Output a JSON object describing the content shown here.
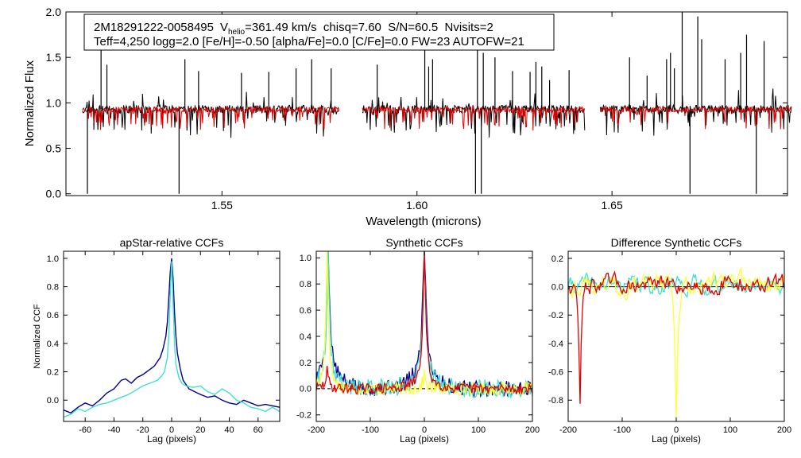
{
  "figure": {
    "star_name": "2M18291222-0058495"
  },
  "chart_data": [
    {
      "id": "spectrum",
      "type": "line",
      "title": "",
      "xlabel": "Wavelength (microns)",
      "ylabel": "Normalized Flux",
      "xlim": [
        1.51,
        1.695
      ],
      "ylim": [
        -0.02,
        2.0
      ],
      "xticks": [
        1.55,
        1.6,
        1.65
      ],
      "xtick_labels": [
        "1.55",
        "1.60",
        "1.65"
      ],
      "yticks": [
        0.0,
        0.5,
        1.0,
        1.5,
        2.0
      ],
      "ytick_labels": [
        "0.0",
        "0.5",
        "1.0",
        "1.5",
        "2.0"
      ],
      "info_box": {
        "line1_star": "2M18291222-0058495",
        "line1_v": "V",
        "line1_v_sub": "helio",
        "line1_rest": "=361.49 km/s  chisq=7.60  S/N=60.5  Nvisits=2",
        "line2": "Teff=4,250 logg=2.0 [Fe/H]=-0.50 [alpha/Fe]=0.0 [C/Fe]=0.0 FW=23 AUTOFW=21"
      },
      "chips": [
        {
          "range": [
            1.5142,
            1.58
          ],
          "n": 380
        },
        {
          "range": [
            1.586,
            1.643
          ],
          "n": 340
        },
        {
          "range": [
            1.647,
            1.696
          ],
          "n": 300
        }
      ],
      "continuum": 0.93,
      "series": [
        {
          "name": "observed",
          "color": "#000000",
          "noise": 0.045,
          "seed": 11
        },
        {
          "name": "model",
          "color": "#e00000",
          "noise": 0.03,
          "seed": 23
        }
      ],
      "spikes": [
        [
          1.5155,
          0.0
        ],
        [
          1.539,
          0.0
        ],
        [
          1.519,
          1.58
        ],
        [
          1.5205,
          1.42
        ],
        [
          1.5405,
          1.48
        ],
        [
          1.544,
          1.35
        ],
        [
          1.555,
          1.33
        ],
        [
          1.562,
          1.34
        ],
        [
          1.569,
          1.38
        ],
        [
          1.573,
          1.48
        ],
        [
          1.578,
          1.38
        ],
        [
          1.5898,
          1.42
        ],
        [
          1.602,
          1.62
        ],
        [
          1.603,
          1.4
        ],
        [
          1.604,
          1.48
        ],
        [
          1.615,
          0.0
        ],
        [
          1.6165,
          0.0
        ],
        [
          1.6155,
          1.7
        ],
        [
          1.617,
          1.55
        ],
        [
          1.62,
          1.5
        ],
        [
          1.6245,
          1.35
        ],
        [
          1.629,
          1.34
        ],
        [
          1.6305,
          1.45
        ],
        [
          1.632,
          1.4
        ],
        [
          1.634,
          1.25
        ],
        [
          1.639,
          1.36
        ],
        [
          1.6545,
          1.5
        ],
        [
          1.659,
          1.3
        ],
        [
          1.664,
          1.48
        ],
        [
          1.665,
          1.55
        ],
        [
          1.666,
          1.38
        ],
        [
          1.668,
          2.0
        ],
        [
          1.67,
          0.0
        ],
        [
          1.672,
          1.95
        ],
        [
          1.673,
          1.7
        ],
        [
          1.679,
          1.48
        ],
        [
          1.683,
          1.55
        ],
        [
          1.6845,
          1.75
        ],
        [
          1.687,
          0.0
        ],
        [
          1.689,
          1.68
        ]
      ]
    },
    {
      "id": "apstar",
      "type": "line",
      "title": "apStar-relative CCFs",
      "xlabel": "Lag (pixels)",
      "ylabel": "Normalized CCF",
      "xlim": [
        -75,
        75
      ],
      "ylim": [
        -0.15,
        1.05
      ],
      "xticks": [
        -60,
        -40,
        -20,
        0,
        20,
        40,
        60
      ],
      "xtick_labels": [
        "-60",
        "-40",
        "-20",
        "0",
        "20",
        "40",
        "60"
      ],
      "yticks": [
        0.0,
        0.2,
        0.4,
        0.6,
        0.8,
        1.0
      ],
      "ytick_labels": [
        "0.0",
        "0.2",
        "0.4",
        "0.6",
        "0.8",
        "1.0"
      ],
      "series": [
        {
          "name": "ccf-1",
          "color": "#00008b",
          "x": [
            -75,
            -70,
            -65,
            -60,
            -55,
            -50,
            -45,
            -40,
            -35,
            -32,
            -28,
            -24,
            -20,
            -16,
            -12,
            -8,
            -6,
            -4,
            -3,
            -2,
            -1,
            0,
            1,
            2,
            3,
            4,
            6,
            8,
            12,
            16,
            20,
            25,
            30,
            35,
            40,
            45,
            50,
            55,
            60,
            65,
            70,
            75
          ],
          "y": [
            -0.07,
            -0.09,
            -0.05,
            -0.02,
            -0.04,
            0.0,
            0.05,
            0.08,
            0.14,
            0.15,
            0.12,
            0.16,
            0.18,
            0.21,
            0.24,
            0.3,
            0.36,
            0.45,
            0.55,
            0.72,
            0.9,
            1.0,
            0.86,
            0.62,
            0.45,
            0.33,
            0.22,
            0.14,
            0.08,
            0.06,
            0.04,
            0.02,
            0.03,
            0.0,
            -0.02,
            -0.03,
            0.0,
            -0.02,
            -0.04,
            -0.03,
            -0.04,
            -0.05
          ]
        },
        {
          "name": "ccf-2",
          "color": "#40e0d0",
          "x": [
            -75,
            -70,
            -65,
            -60,
            -55,
            -50,
            -45,
            -40,
            -35,
            -30,
            -25,
            -20,
            -15,
            -10,
            -7,
            -5,
            -3,
            -2,
            -1,
            0,
            1,
            2,
            3,
            5,
            7,
            10,
            15,
            20,
            25,
            30,
            35,
            40,
            45,
            50,
            55,
            60,
            65,
            70,
            75
          ],
          "y": [
            -0.12,
            -0.1,
            -0.06,
            -0.08,
            -0.05,
            -0.03,
            -0.02,
            0.0,
            0.02,
            0.04,
            0.07,
            0.1,
            0.12,
            0.14,
            0.17,
            0.2,
            0.3,
            0.45,
            0.75,
            0.98,
            0.7,
            0.4,
            0.25,
            0.16,
            0.12,
            0.1,
            0.09,
            0.1,
            0.06,
            0.04,
            0.08,
            0.05,
            0.0,
            -0.02,
            -0.05,
            -0.06,
            -0.08,
            -0.05,
            -0.08
          ]
        }
      ]
    },
    {
      "id": "synthetic",
      "type": "line",
      "title": "Synthetic CCFs",
      "xlabel": "Lag (pixels)",
      "ylabel": "",
      "xlim": [
        -200,
        200
      ],
      "ylim": [
        -0.25,
        1.05
      ],
      "xticks": [
        -200,
        -100,
        0,
        100,
        200
      ],
      "xtick_labels": [
        "-200",
        "-100",
        "0",
        "100",
        "200"
      ],
      "yticks": [
        -0.2,
        0.0,
        0.2,
        0.4,
        0.6,
        0.8,
        1.0
      ],
      "ytick_labels": [
        "-0.2",
        "0.0",
        "0.2",
        "0.4",
        "0.6",
        "0.8",
        "1.0"
      ],
      "zero_line": true,
      "series": [
        {
          "name": "ccf-1",
          "color": "#00008b",
          "peaks": [
            [
              -178,
              0.86
            ],
            [
              0,
              0.98
            ]
          ],
          "wing": 0.35,
          "noise": 0.06,
          "seed": 5
        },
        {
          "name": "ccf-2",
          "color": "#40e0d0",
          "peaks": [
            [
              -178,
              0.88
            ],
            [
              0,
              0.96
            ]
          ],
          "wing": 0.25,
          "noise": 0.07,
          "seed": 9
        },
        {
          "name": "ccf-3",
          "color": "#ffff33",
          "peaks": [
            [
              -180,
              0.98
            ],
            [
              0,
              0.1
            ]
          ],
          "wing": 0.1,
          "noise": 0.05,
          "seed": 17
        },
        {
          "name": "ccf-4",
          "color": "#e00000",
          "peaks": [
            [
              -180,
              0.12
            ],
            [
              0,
              0.99
            ]
          ],
          "wing": 0.15,
          "noise": 0.04,
          "seed": 29
        }
      ]
    },
    {
      "id": "difference",
      "type": "line",
      "title": "Difference Synthetic CCFs",
      "xlabel": "Lag (pixels)",
      "ylabel": "",
      "xlim": [
        -200,
        200
      ],
      "ylim": [
        -0.95,
        0.25
      ],
      "xticks": [
        -200,
        -100,
        0,
        100,
        200
      ],
      "xtick_labels": [
        "-200",
        "-100",
        "0",
        "100",
        "200"
      ],
      "yticks": [
        -0.8,
        -0.6,
        -0.4,
        -0.2,
        0.0,
        0.2
      ],
      "ytick_labels": [
        "-0.8",
        "-0.6",
        "-0.4",
        "-0.2",
        "0.0",
        "0.2"
      ],
      "zero_line": true,
      "series": [
        {
          "name": "diff-1",
          "color": "#40e0d0",
          "dips": [],
          "noise": 0.06,
          "seed": 41
        },
        {
          "name": "diff-2",
          "color": "#ffff33",
          "dips": [
            [
              0,
              -0.92
            ]
          ],
          "noise": 0.07,
          "seed": 43
        },
        {
          "name": "diff-3",
          "color": "#e00000",
          "dips": [
            [
              -178,
              -0.85
            ]
          ],
          "noise": 0.06,
          "seed": 47
        }
      ]
    }
  ]
}
